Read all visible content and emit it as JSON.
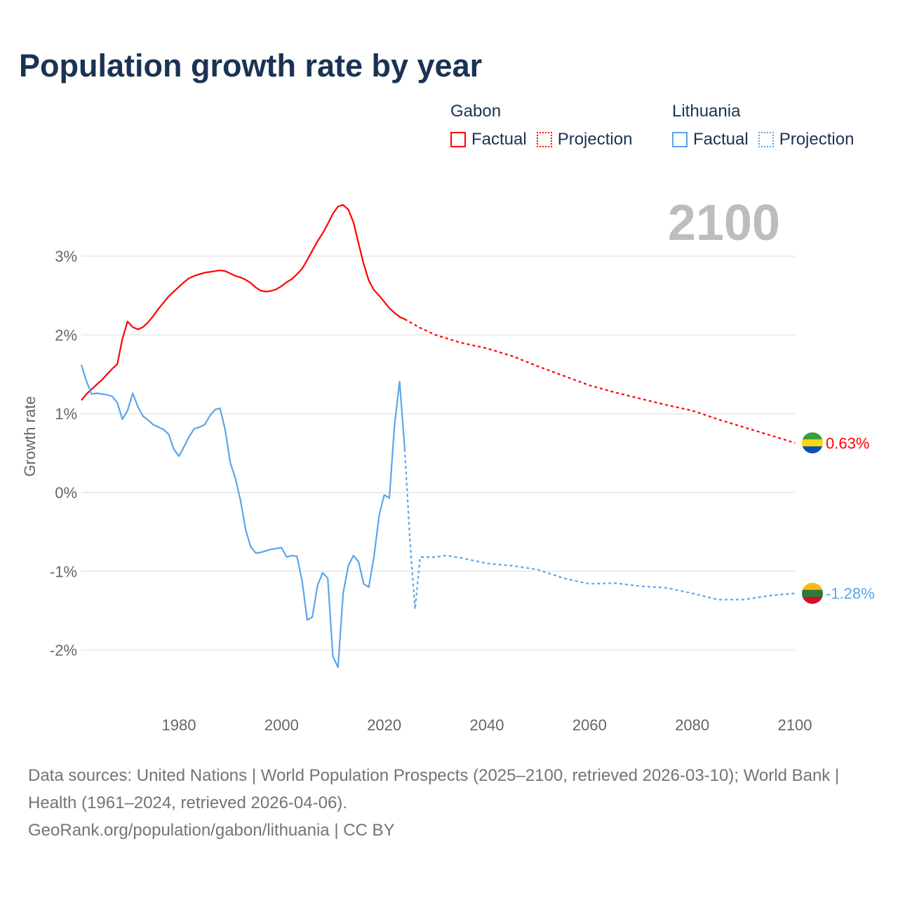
{
  "title": "Population growth rate by year",
  "legend": {
    "groups": [
      {
        "name": "Gabon",
        "factual": "Factual",
        "projection": "Projection",
        "color": "#ff0000"
      },
      {
        "name": "Lithuania",
        "factual": "Factual",
        "projection": "Projection",
        "color": "#5aa5ea"
      }
    ]
  },
  "year_display": "2100",
  "footer": {
    "sources": "Data sources: United Nations | World Population Prospects (2025–2100, retrieved 2026-03-10); World Bank | Health (1961–2024, retrieved 2026-04-06).",
    "credit": "GeoRank.org/population/gabon/lithuania | CC BY"
  },
  "chart_data": {
    "type": "line",
    "title": "Population growth rate by year",
    "xlabel": "",
    "ylabel": "Growth rate",
    "xlim": [
      1961,
      2100
    ],
    "ylim": [
      -2.7,
      3.9
    ],
    "x_ticks": [
      "1980",
      "2000",
      "2020",
      "2040",
      "2060",
      "2080",
      "2100"
    ],
    "x_tick_values": [
      1980,
      2000,
      2020,
      2040,
      2060,
      2080,
      2100
    ],
    "y_ticks": [
      "3%",
      "2%",
      "1%",
      "0%",
      "-1%",
      "-2%"
    ],
    "y_tick_values": [
      3,
      2,
      1,
      0,
      -1,
      -2
    ],
    "grid": true,
    "legend_position": "top-right",
    "series": [
      {
        "name": "Gabon Factual",
        "color": "#ff0000",
        "dashed": false,
        "x": [
          1961,
          1962,
          1963,
          1964,
          1965,
          1966,
          1967,
          1968,
          1969,
          1970,
          1971,
          1972,
          1973,
          1974,
          1975,
          1976,
          1977,
          1978,
          1979,
          1980,
          1981,
          1982,
          1983,
          1984,
          1985,
          1986,
          1987,
          1988,
          1989,
          1990,
          1991,
          1992,
          1993,
          1994,
          1995,
          1996,
          1997,
          1998,
          1999,
          2000,
          2001,
          2002,
          2003,
          2004,
          2005,
          2006,
          2007,
          2008,
          2009,
          2010,
          2011,
          2012,
          2013,
          2014,
          2015,
          2016,
          2017,
          2018,
          2019,
          2020,
          2021,
          2022,
          2023,
          2024
        ],
        "y": [
          1.17,
          1.25,
          1.31,
          1.37,
          1.43,
          1.5,
          1.57,
          1.63,
          1.95,
          2.17,
          2.1,
          2.07,
          2.1,
          2.16,
          2.24,
          2.33,
          2.41,
          2.49,
          2.55,
          2.61,
          2.67,
          2.72,
          2.75,
          2.77,
          2.79,
          2.8,
          2.81,
          2.82,
          2.81,
          2.78,
          2.75,
          2.73,
          2.7,
          2.66,
          2.6,
          2.56,
          2.55,
          2.56,
          2.58,
          2.62,
          2.67,
          2.71,
          2.77,
          2.84,
          2.95,
          3.07,
          3.19,
          3.29,
          3.41,
          3.54,
          3.63,
          3.65,
          3.59,
          3.43,
          3.16,
          2.9,
          2.69,
          2.57,
          2.5,
          2.42,
          2.34,
          2.28,
          2.23,
          2.2
        ]
      },
      {
        "name": "Gabon Projection",
        "color": "#ff0000",
        "dashed": true,
        "x": [
          2024,
          2027,
          2030,
          2035,
          2040,
          2045,
          2050,
          2055,
          2060,
          2065,
          2070,
          2075,
          2080,
          2085,
          2090,
          2095,
          2100
        ],
        "y": [
          2.2,
          2.09,
          2.0,
          1.9,
          1.83,
          1.73,
          1.6,
          1.48,
          1.36,
          1.27,
          1.19,
          1.11,
          1.04,
          0.93,
          0.83,
          0.73,
          0.63
        ]
      },
      {
        "name": "Lithuania Factual",
        "color": "#5aa5ea",
        "dashed": false,
        "x": [
          1961,
          1962,
          1963,
          1964,
          1965,
          1966,
          1967,
          1968,
          1969,
          1970,
          1971,
          1972,
          1973,
          1974,
          1975,
          1976,
          1977,
          1978,
          1979,
          1980,
          1981,
          1982,
          1983,
          1984,
          1985,
          1986,
          1987,
          1988,
          1989,
          1990,
          1991,
          1992,
          1993,
          1994,
          1995,
          1996,
          1997,
          1998,
          1999,
          2000,
          2001,
          2002,
          2003,
          2004,
          2005,
          2006,
          2007,
          2008,
          2009,
          2010,
          2011,
          2012,
          2013,
          2014,
          2015,
          2016,
          2017,
          2018,
          2019,
          2020,
          2021,
          2022,
          2023,
          2024
        ],
        "y": [
          1.62,
          1.41,
          1.25,
          1.26,
          1.25,
          1.24,
          1.22,
          1.14,
          0.93,
          1.04,
          1.26,
          1.09,
          0.97,
          0.92,
          0.86,
          0.83,
          0.8,
          0.74,
          0.55,
          0.46,
          0.58,
          0.71,
          0.81,
          0.83,
          0.86,
          0.97,
          1.05,
          1.07,
          0.8,
          0.38,
          0.18,
          -0.1,
          -0.47,
          -0.69,
          -0.77,
          -0.76,
          -0.74,
          -0.72,
          -0.71,
          -0.7,
          -0.82,
          -0.8,
          -0.81,
          -1.12,
          -1.62,
          -1.58,
          -1.18,
          -1.02,
          -1.09,
          -2.08,
          -2.22,
          -1.28,
          -0.93,
          -0.8,
          -0.88,
          -1.16,
          -1.2,
          -0.82,
          -0.29,
          -0.03,
          -0.07,
          0.85,
          1.41,
          0.55
        ]
      },
      {
        "name": "Lithuania Projection",
        "color": "#5aa5ea",
        "dashed": true,
        "x": [
          2024,
          2025,
          2026,
          2027,
          2030,
          2032,
          2035,
          2040,
          2045,
          2050,
          2055,
          2060,
          2065,
          2070,
          2075,
          2080,
          2085,
          2090,
          2095,
          2100
        ],
        "y": [
          0.55,
          -0.6,
          -1.48,
          -0.82,
          -0.82,
          -0.8,
          -0.83,
          -0.9,
          -0.93,
          -0.98,
          -1.09,
          -1.16,
          -1.15,
          -1.19,
          -1.21,
          -1.28,
          -1.36,
          -1.36,
          -1.31,
          -1.28
        ]
      }
    ],
    "end_labels": [
      {
        "country": "Gabon",
        "value": 0.63,
        "text": "0.63%",
        "color": "#ff0000"
      },
      {
        "country": "Lithuania",
        "value": -1.28,
        "text": "-1.28%",
        "color": "#5aa5ea"
      }
    ]
  }
}
